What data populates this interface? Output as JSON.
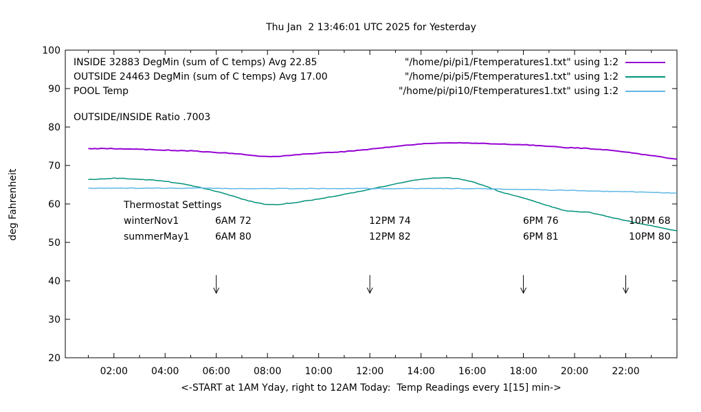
{
  "colors": {
    "inside": "#9400d3",
    "outside": "#009178",
    "pool": "#5fb7e5",
    "axis": "#000000",
    "background": "#ffffff"
  },
  "legend": {
    "rows": [
      {
        "label": "INSIDE 32883 DegMin (sum of C temps) Avg 22.85",
        "file": "\"/home/pi/pi1/Ftemperatures1.txt\" using 1:2",
        "series": "inside"
      },
      {
        "label": "OUTSIDE 24463 DegMin (sum of C temps) Avg 17.00",
        "file": "\"/home/pi/pi5/Ftemperatures1.txt\" using 1:2",
        "series": "outside"
      },
      {
        "label": "POOL Temp",
        "file": "\"/home/pi/pi10/Ftemperatures1.txt\" using 1:2",
        "series": "pool"
      }
    ]
  },
  "ratio_note": "OUTSIDE/INSIDE Ratio .7003",
  "thermostat": {
    "heading": "Thermostat Settings",
    "rows": [
      {
        "season": "winterNov1",
        "settings": [
          "6AM 72",
          "12PM 74",
          "6PM 76",
          "10PM 68"
        ]
      },
      {
        "season": "summerMay1",
        "settings": [
          "6AM 80",
          "12PM 82",
          "6PM 81",
          "10PM 80"
        ]
      }
    ]
  },
  "chart_data": {
    "type": "line",
    "title": "Thu Jan  2 13:46:01 UTC 2025 for Yesterday",
    "xlabel": "<-START at 1AM Yday, right to 12AM Today:  Temp Readings every 1[15] min->",
    "ylabel": "deg Fahrenheit",
    "xlim": [
      0.1,
      24
    ],
    "ylim": [
      20,
      100
    ],
    "grid": false,
    "legend_position": "top-inside",
    "x_ticks": [
      {
        "t": 2,
        "label": "02:00"
      },
      {
        "t": 4,
        "label": "04:00"
      },
      {
        "t": 6,
        "label": "06:00"
      },
      {
        "t": 8,
        "label": "08:00"
      },
      {
        "t": 10,
        "label": "10:00"
      },
      {
        "t": 12,
        "label": "12:00"
      },
      {
        "t": 14,
        "label": "14:00"
      },
      {
        "t": 16,
        "label": "16:00"
      },
      {
        "t": 18,
        "label": "18:00"
      },
      {
        "t": 20,
        "label": "20:00"
      },
      {
        "t": 22,
        "label": "22:00"
      }
    ],
    "x_minor_tick_hours": [
      1,
      3,
      5,
      7,
      9,
      11,
      13,
      15,
      17,
      19,
      21,
      23
    ],
    "y_ticks": [
      {
        "v": 20,
        "label": "20"
      },
      {
        "v": 30,
        "label": "30"
      },
      {
        "v": 40,
        "label": "40"
      },
      {
        "v": 50,
        "label": "50"
      },
      {
        "v": 60,
        "label": "60"
      },
      {
        "v": 70,
        "label": "70"
      },
      {
        "v": 80,
        "label": "80"
      },
      {
        "v": 90,
        "label": "90"
      },
      {
        "v": 100,
        "label": "100"
      }
    ],
    "arrows": {
      "x_hours": [
        6,
        12,
        18,
        22
      ],
      "from_f": 41.5,
      "to_f": 36.8
    },
    "x_hours": [
      1,
      1.5,
      2,
      2.5,
      3,
      3.5,
      4,
      4.5,
      5,
      5.5,
      6,
      6.5,
      7,
      7.5,
      8,
      8.5,
      9,
      9.5,
      10,
      10.5,
      11,
      11.5,
      12,
      12.5,
      13,
      13.5,
      14,
      14.5,
      15,
      15.5,
      16,
      16.5,
      17,
      17.5,
      18,
      18.5,
      19,
      19.5,
      20,
      20.5,
      21,
      21.5,
      22,
      22.5,
      23,
      23.5,
      24
    ],
    "series": [
      {
        "name": "INSIDE",
        "color_key": "inside",
        "values": [
          74.4,
          74.4,
          74.4,
          74.3,
          74.2,
          74.1,
          74.0,
          73.9,
          73.8,
          73.6,
          73.4,
          73.2,
          72.9,
          72.5,
          72.3,
          72.4,
          72.7,
          73.0,
          73.2,
          73.4,
          73.6,
          73.9,
          74.2,
          74.6,
          74.9,
          75.3,
          75.6,
          75.8,
          75.9,
          75.9,
          75.8,
          75.7,
          75.6,
          75.5,
          75.4,
          75.2,
          75.0,
          74.7,
          74.6,
          74.4,
          74.2,
          73.9,
          73.5,
          73.0,
          72.6,
          72.1,
          71.7
        ]
      },
      {
        "name": "OUTSIDE",
        "color_key": "outside",
        "values": [
          66.3,
          66.5,
          66.7,
          66.6,
          66.4,
          66.2,
          65.9,
          65.4,
          64.8,
          64.1,
          63.3,
          62.3,
          61.3,
          60.4,
          59.8,
          59.9,
          60.3,
          60.8,
          61.3,
          61.9,
          62.5,
          63.1,
          63.8,
          64.5,
          65.2,
          65.9,
          66.4,
          66.7,
          66.8,
          66.5,
          65.8,
          64.7,
          63.4,
          62.4,
          61.5,
          60.5,
          59.5,
          58.4,
          58.0,
          57.9,
          57.2,
          56.4,
          55.7,
          55.0,
          54.3,
          53.6,
          53.0
        ]
      },
      {
        "name": "POOL",
        "color_key": "pool",
        "values": [
          64.1,
          64.1,
          64.1,
          64.1,
          64.1,
          64.1,
          64.1,
          64.1,
          64.1,
          64.1,
          64.1,
          64.0,
          64.0,
          64.0,
          64.0,
          64.0,
          64.0,
          64.0,
          64.0,
          64.0,
          64.0,
          64.0,
          64.0,
          64.0,
          64.0,
          64.0,
          64.0,
          64.0,
          64.0,
          64.0,
          64.0,
          63.9,
          63.9,
          63.8,
          63.8,
          63.7,
          63.6,
          63.6,
          63.5,
          63.4,
          63.3,
          63.2,
          63.2,
          63.1,
          63.0,
          62.9,
          62.8
        ]
      }
    ]
  }
}
